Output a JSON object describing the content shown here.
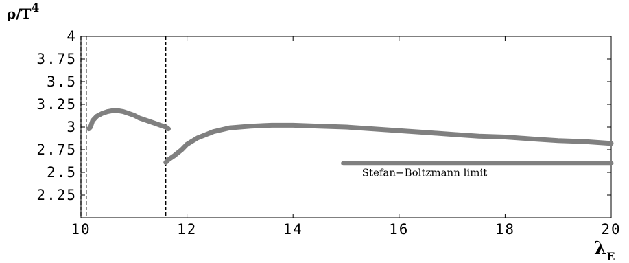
{
  "chart_data": {
    "type": "line",
    "ylabel": "ρ/T",
    "ylabel_sup": "4",
    "xlabel": "λ",
    "xlabel_sub": "E",
    "xlim": [
      10,
      20
    ],
    "ylim": [
      2.0,
      4.0
    ],
    "x_ticks": [
      10,
      12,
      14,
      16,
      18,
      20
    ],
    "x_tick_labels": [
      "10",
      "12",
      "14",
      "16",
      "18",
      "20"
    ],
    "y_ticks": [
      2.25,
      2.5,
      2.75,
      3,
      3.25,
      3.5,
      3.75,
      4
    ],
    "y_tick_labels": [
      "2.25",
      "2.5",
      "2.75",
      "3",
      "3.25",
      "3.5",
      "3.75",
      "4"
    ],
    "grid": false,
    "vertical_dashed_lines": [
      10.0,
      10.1,
      11.6
    ],
    "series": [
      {
        "color": "#808080",
        "x": [
          10.15,
          10.18,
          10.22,
          10.3,
          10.4,
          10.5,
          10.6,
          10.7,
          10.8,
          10.9,
          11.0,
          11.1,
          11.2,
          11.3,
          11.4,
          11.5,
          11.6,
          11.65
        ],
        "y": [
          2.98,
          3.0,
          3.07,
          3.12,
          3.15,
          3.17,
          3.18,
          3.18,
          3.17,
          3.15,
          3.13,
          3.1,
          3.08,
          3.06,
          3.04,
          3.02,
          3.0,
          2.98
        ]
      },
      {
        "color": "#808080",
        "x": [
          11.6,
          11.65,
          11.75,
          11.9,
          12.0,
          12.2,
          12.5,
          12.8,
          13.2,
          13.6,
          14.0,
          14.5,
          15.0,
          15.5,
          16.0,
          16.5,
          17.0,
          17.5,
          18.0,
          18.5,
          19.0,
          19.5,
          20.0
        ],
        "y": [
          2.61,
          2.64,
          2.68,
          2.75,
          2.81,
          2.88,
          2.95,
          2.99,
          3.01,
          3.02,
          3.02,
          3.01,
          3.0,
          2.98,
          2.96,
          2.94,
          2.92,
          2.9,
          2.89,
          2.87,
          2.85,
          2.84,
          2.82
        ]
      },
      {
        "color": "#808080",
        "x": [
          14.95,
          20.0
        ],
        "y": [
          2.6,
          2.6
        ]
      }
    ],
    "annotations": [
      {
        "text": "Stefan−Boltzmann limit",
        "x": 15.3,
        "y": 2.46
      }
    ]
  }
}
